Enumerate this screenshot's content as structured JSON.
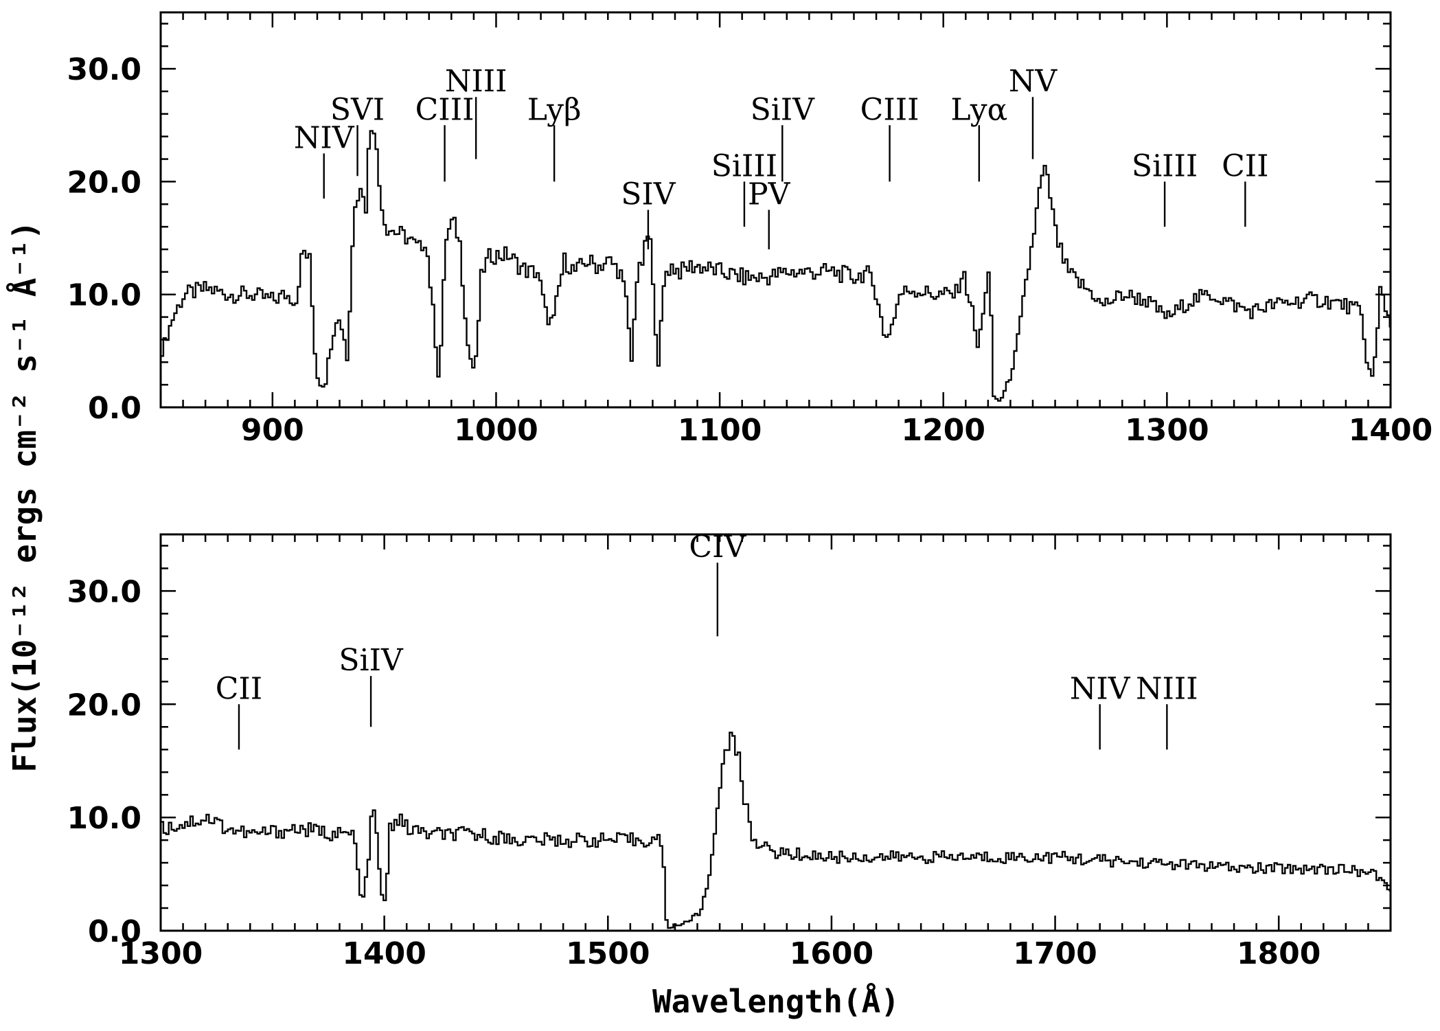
{
  "axis_titles": {
    "ylabel": "Flux(10⁻¹² ergs cm⁻² s⁻¹ Å⁻¹)",
    "xlabel": "Wavelength(Å)"
  },
  "chart_data": [
    {
      "type": "line",
      "xlim": [
        850,
        1400
      ],
      "ylim": [
        0,
        35
      ],
      "x_ticks": [
        900,
        1000,
        1100,
        1200,
        1300,
        1400
      ],
      "x_tick_labels": [
        "900",
        "1000",
        "1100",
        "1200",
        "1300",
        "1400"
      ],
      "y_ticks": [
        0,
        10,
        20,
        30
      ],
      "y_tick_labels": [
        "0.0",
        "10.0",
        "20.0",
        "30.0"
      ],
      "series": [
        {
          "x": [
            850,
            855,
            860,
            870,
            880,
            890,
            900,
            905,
            910,
            913,
            916,
            919,
            921,
            923,
            925,
            928,
            931,
            933,
            936,
            939,
            941,
            943,
            945,
            947,
            950,
            955,
            960,
            965,
            968,
            971,
            974,
            977,
            980,
            983,
            987,
            990,
            993,
            997,
            1000,
            1005,
            1010,
            1014,
            1018,
            1022,
            1025,
            1027,
            1030,
            1035,
            1040,
            1045,
            1050,
            1055,
            1058,
            1060,
            1062,
            1065,
            1068,
            1070,
            1072,
            1075,
            1078,
            1082,
            1086,
            1090,
            1100,
            1110,
            1120,
            1130,
            1140,
            1150,
            1160,
            1165,
            1170,
            1173,
            1176,
            1180,
            1185,
            1195,
            1200,
            1205,
            1208,
            1212,
            1215,
            1218,
            1220,
            1222,
            1224,
            1226,
            1229,
            1232,
            1235,
            1238,
            1241,
            1243,
            1245,
            1247,
            1250,
            1255,
            1260,
            1267,
            1270,
            1280,
            1290,
            1296,
            1300,
            1310,
            1320,
            1330,
            1337,
            1345,
            1360,
            1370,
            1380,
            1386,
            1389,
            1391,
            1393,
            1395,
            1397,
            1400
          ],
          "y": [
            5,
            8,
            10,
            10.5,
            10,
            10,
            9.5,
            10,
            9.5,
            14,
            13,
            3,
            2,
            2,
            5,
            8,
            7,
            4,
            18,
            20,
            17,
            25,
            25,
            20,
            16,
            15.5,
            15,
            14,
            15,
            9,
            2,
            15,
            16.5,
            15,
            5,
            3,
            12,
            13.5,
            13.5,
            13.5,
            12.5,
            12,
            12,
            8,
            7.5,
            10,
            13,
            12,
            13,
            12.5,
            13,
            12,
            9,
            4,
            11,
            13,
            16,
            9,
            4,
            12,
            12.5,
            12,
            12.5,
            12.5,
            12,
            11.5,
            11.5,
            12,
            12,
            12,
            11.5,
            12,
            10,
            6,
            7,
            10,
            10.5,
            10,
            10,
            10,
            12,
            9,
            5,
            10,
            12,
            1,
            0.5,
            1,
            2.5,
            5,
            9,
            13,
            17,
            20,
            21,
            19,
            15,
            12,
            11,
            10,
            9,
            10,
            9.5,
            8.5,
            8,
            9.5,
            10,
            9,
            8.5,
            9,
            9.5,
            9.5,
            9,
            8.5,
            4,
            2.5,
            5,
            11,
            9,
            7
          ]
        }
      ],
      "line_ids": [
        {
          "label": "NIV",
          "x": 923,
          "y_bottom": 18.5,
          "y_top": 22.5
        },
        {
          "label": "SVI",
          "x": 938,
          "y_bottom": 20.5,
          "y_top": 25
        },
        {
          "label": "CIII",
          "x": 977,
          "y_bottom": 20,
          "y_top": 25
        },
        {
          "label": "NIII",
          "x": 991,
          "y_bottom": 22,
          "y_top": 27.5
        },
        {
          "label": "Lyβ",
          "x": 1026,
          "y_bottom": 20,
          "y_top": 25
        },
        {
          "label": "SIV",
          "x": 1068,
          "y_bottom": 14,
          "y_top": 17.5
        },
        {
          "label": "SiIII",
          "x": 1111,
          "y_bottom": 16,
          "y_top": 20
        },
        {
          "label": "PV",
          "x": 1122,
          "y_bottom": 14,
          "y_top": 17.5
        },
        {
          "label": "SiIV",
          "x": 1128,
          "y_bottom": 20,
          "y_top": 25
        },
        {
          "label": "CIII",
          "x": 1176,
          "y_bottom": 20,
          "y_top": 25
        },
        {
          "label": "Lyα",
          "x": 1216,
          "y_bottom": 20,
          "y_top": 25
        },
        {
          "label": "NV",
          "x": 1240,
          "y_bottom": 22,
          "y_top": 27.5
        },
        {
          "label": "SiIII",
          "x": 1299,
          "y_bottom": 16,
          "y_top": 20
        },
        {
          "label": "CII",
          "x": 1335,
          "y_bottom": 16,
          "y_top": 20
        }
      ]
    },
    {
      "type": "line",
      "xlim": [
        1300,
        1850
      ],
      "ylim": [
        0,
        35
      ],
      "x_ticks": [
        1300,
        1400,
        1500,
        1600,
        1700,
        1800
      ],
      "x_tick_labels": [
        "1300",
        "1400",
        "1500",
        "1600",
        "1700",
        "1800"
      ],
      "y_ticks": [
        0,
        10,
        20,
        30
      ],
      "y_tick_labels": [
        "0.0",
        "10.0",
        "20.0",
        "30.0"
      ],
      "series": [
        {
          "x": [
            1300,
            1310,
            1320,
            1330,
            1340,
            1360,
            1380,
            1386,
            1389,
            1392,
            1394,
            1396,
            1398,
            1400,
            1402,
            1405,
            1410,
            1420,
            1440,
            1460,
            1480,
            1500,
            1515,
            1524,
            1525,
            1527,
            1530,
            1535,
            1540,
            1543,
            1546,
            1549,
            1552,
            1555,
            1558,
            1561,
            1564,
            1568,
            1572,
            1580,
            1600,
            1620,
            1650,
            1680,
            1700,
            1720,
            1740,
            1760,
            1780,
            1800,
            1820,
            1840,
            1845,
            1850
          ],
          "y": [
            9,
            9.5,
            10,
            9,
            8.5,
            9,
            8.5,
            8.5,
            2.5,
            5,
            11,
            9,
            3,
            2.5,
            9,
            10,
            9,
            8.5,
            8.5,
            8,
            8,
            8,
            8,
            8,
            1,
            0.3,
            0.5,
            0.8,
            1.5,
            3,
            6.5,
            12,
            16.5,
            17,
            15,
            11,
            8.5,
            7.5,
            7,
            6.8,
            6.5,
            6.5,
            6.5,
            6.5,
            6.5,
            6.2,
            6,
            5.8,
            5.5,
            5.5,
            5.5,
            5.2,
            4.5,
            3.5
          ]
        }
      ],
      "line_ids": [
        {
          "label": "CII",
          "x": 1335,
          "y_bottom": 16,
          "y_top": 20
        },
        {
          "label": "SiIV",
          "x": 1394,
          "y_bottom": 18,
          "y_top": 22.5
        },
        {
          "label": "CIV",
          "x": 1549,
          "y_bottom": 26,
          "y_top": 32.5
        },
        {
          "label": "NIV",
          "x": 1720,
          "y_bottom": 16,
          "y_top": 20
        },
        {
          "label": "NIII",
          "x": 1750,
          "y_bottom": 16,
          "y_top": 20
        }
      ]
    }
  ]
}
